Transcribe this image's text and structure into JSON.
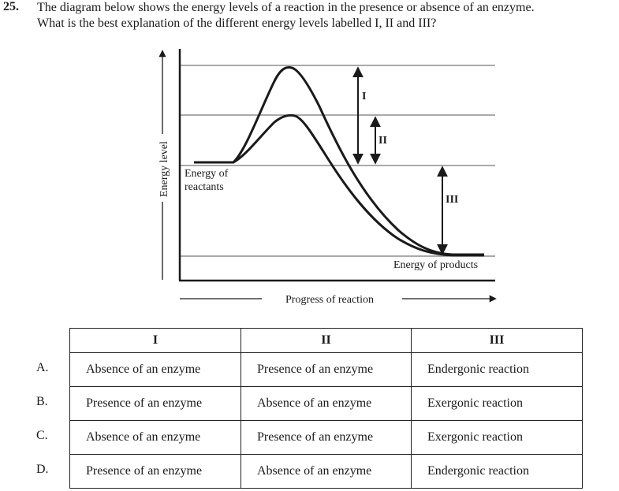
{
  "question": {
    "number": "25.",
    "line1": "The diagram below shows the energy levels of a reaction in the presence or absence of an enzyme.",
    "line2": "What is the best explanation of the different energy levels labelled I, II and III?"
  },
  "diagram": {
    "y_axis_label": "Energy level",
    "x_axis_label": "Progress of reaction",
    "reactants_label_line1": "Energy of",
    "reactants_label_line2": "reactants",
    "products_label": "Energy of products",
    "arrow_labels": [
      "I",
      "II",
      "III"
    ]
  },
  "table": {
    "headers": [
      "I",
      "II",
      "III"
    ],
    "rows": [
      {
        "letter": "A.",
        "cells": [
          "Absence of an enzyme",
          "Presence of an enzyme",
          "Endergonic reaction"
        ]
      },
      {
        "letter": "B.",
        "cells": [
          "Presence of an enzyme",
          "Absence of an enzyme",
          "Exergonic reaction"
        ]
      },
      {
        "letter": "C.",
        "cells": [
          "Absence of an enzyme",
          "Presence of an enzyme",
          "Exergonic reaction"
        ]
      },
      {
        "letter": "D.",
        "cells": [
          "Presence of an enzyme",
          "Absence of an enzyme",
          "Endergonic reaction"
        ]
      }
    ]
  }
}
